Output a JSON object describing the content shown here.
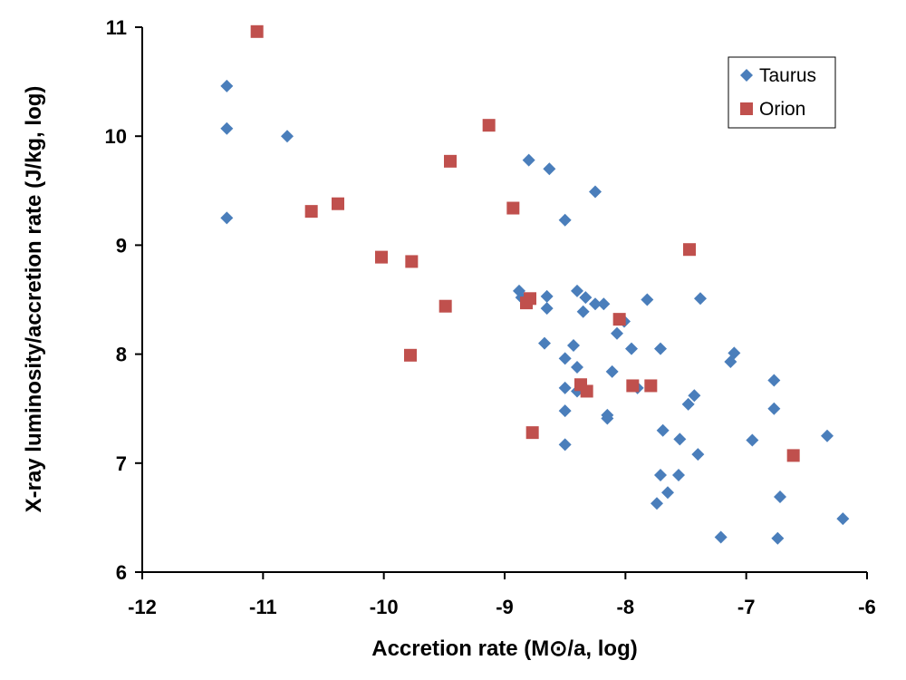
{
  "chart_data": {
    "type": "scatter",
    "title": "",
    "xlabel": "Accretion rate (M⊙/a, log)",
    "ylabel": "X-ray luminosity/accretion rate (J/kg, log)",
    "xlim": [
      -12,
      -6
    ],
    "ylim": [
      6,
      11
    ],
    "x_ticks": [
      -12,
      -11,
      -10,
      -9,
      -8,
      -7,
      -6
    ],
    "y_ticks": [
      6,
      7,
      8,
      9,
      10,
      11
    ],
    "x_tick_labels": [
      "-12",
      "-11",
      "-10",
      "-9",
      "-8",
      "-7",
      "-6"
    ],
    "y_tick_labels": [
      "6",
      "7",
      "8",
      "9",
      "10",
      "11"
    ],
    "grid": false,
    "legend_position": "top-right",
    "series": [
      {
        "name": "Taurus",
        "marker": "diamond",
        "color": "#4a7ebb",
        "points": [
          [
            -11.3,
            10.46
          ],
          [
            -11.3,
            10.07
          ],
          [
            -10.8,
            10.0
          ],
          [
            -11.3,
            9.25
          ],
          [
            -8.8,
            9.78
          ],
          [
            -8.63,
            9.7
          ],
          [
            -8.25,
            9.49
          ],
          [
            -8.5,
            9.23
          ],
          [
            -8.88,
            8.58
          ],
          [
            -8.86,
            8.52
          ],
          [
            -8.65,
            8.53
          ],
          [
            -8.4,
            8.58
          ],
          [
            -8.33,
            8.52
          ],
          [
            -8.25,
            8.46
          ],
          [
            -8.18,
            8.46
          ],
          [
            -8.35,
            8.39
          ],
          [
            -8.65,
            8.42
          ],
          [
            -7.82,
            8.5
          ],
          [
            -7.38,
            8.51
          ],
          [
            -8.01,
            8.3
          ],
          [
            -8.07,
            8.19
          ],
          [
            -8.67,
            8.1
          ],
          [
            -8.43,
            8.08
          ],
          [
            -7.95,
            8.05
          ],
          [
            -7.71,
            8.05
          ],
          [
            -8.5,
            7.96
          ],
          [
            -7.1,
            8.01
          ],
          [
            -7.13,
            7.93
          ],
          [
            -8.4,
            7.88
          ],
          [
            -8.11,
            7.84
          ],
          [
            -8.5,
            7.69
          ],
          [
            -8.4,
            7.66
          ],
          [
            -7.9,
            7.69
          ],
          [
            -6.77,
            7.76
          ],
          [
            -7.43,
            7.62
          ],
          [
            -7.48,
            7.54
          ],
          [
            -8.5,
            7.48
          ],
          [
            -8.15,
            7.44
          ],
          [
            -8.15,
            7.41
          ],
          [
            -6.77,
            7.5
          ],
          [
            -7.69,
            7.3
          ],
          [
            -7.55,
            7.22
          ],
          [
            -6.95,
            7.21
          ],
          [
            -6.33,
            7.25
          ],
          [
            -8.5,
            7.17
          ],
          [
            -7.4,
            7.08
          ],
          [
            -7.71,
            6.89
          ],
          [
            -7.56,
            6.89
          ],
          [
            -7.65,
            6.73
          ],
          [
            -7.74,
            6.63
          ],
          [
            -6.72,
            6.69
          ],
          [
            -6.2,
            6.49
          ],
          [
            -7.21,
            6.32
          ],
          [
            -6.74,
            6.31
          ]
        ]
      },
      {
        "name": "Orion",
        "marker": "square",
        "color": "#c0504d",
        "points": [
          [
            -11.05,
            10.96
          ],
          [
            -9.13,
            10.1
          ],
          [
            -9.45,
            9.77
          ],
          [
            -10.6,
            9.31
          ],
          [
            -10.38,
            9.38
          ],
          [
            -8.93,
            9.34
          ],
          [
            -10.02,
            8.89
          ],
          [
            -9.77,
            8.85
          ],
          [
            -7.47,
            8.96
          ],
          [
            -9.49,
            8.44
          ],
          [
            -8.79,
            8.51
          ],
          [
            -8.82,
            8.47
          ],
          [
            -8.05,
            8.32
          ],
          [
            -9.78,
            7.99
          ],
          [
            -8.37,
            7.72
          ],
          [
            -8.32,
            7.66
          ],
          [
            -7.94,
            7.71
          ],
          [
            -7.79,
            7.71
          ],
          [
            -8.77,
            7.28
          ],
          [
            -6.61,
            7.07
          ]
        ]
      }
    ]
  }
}
